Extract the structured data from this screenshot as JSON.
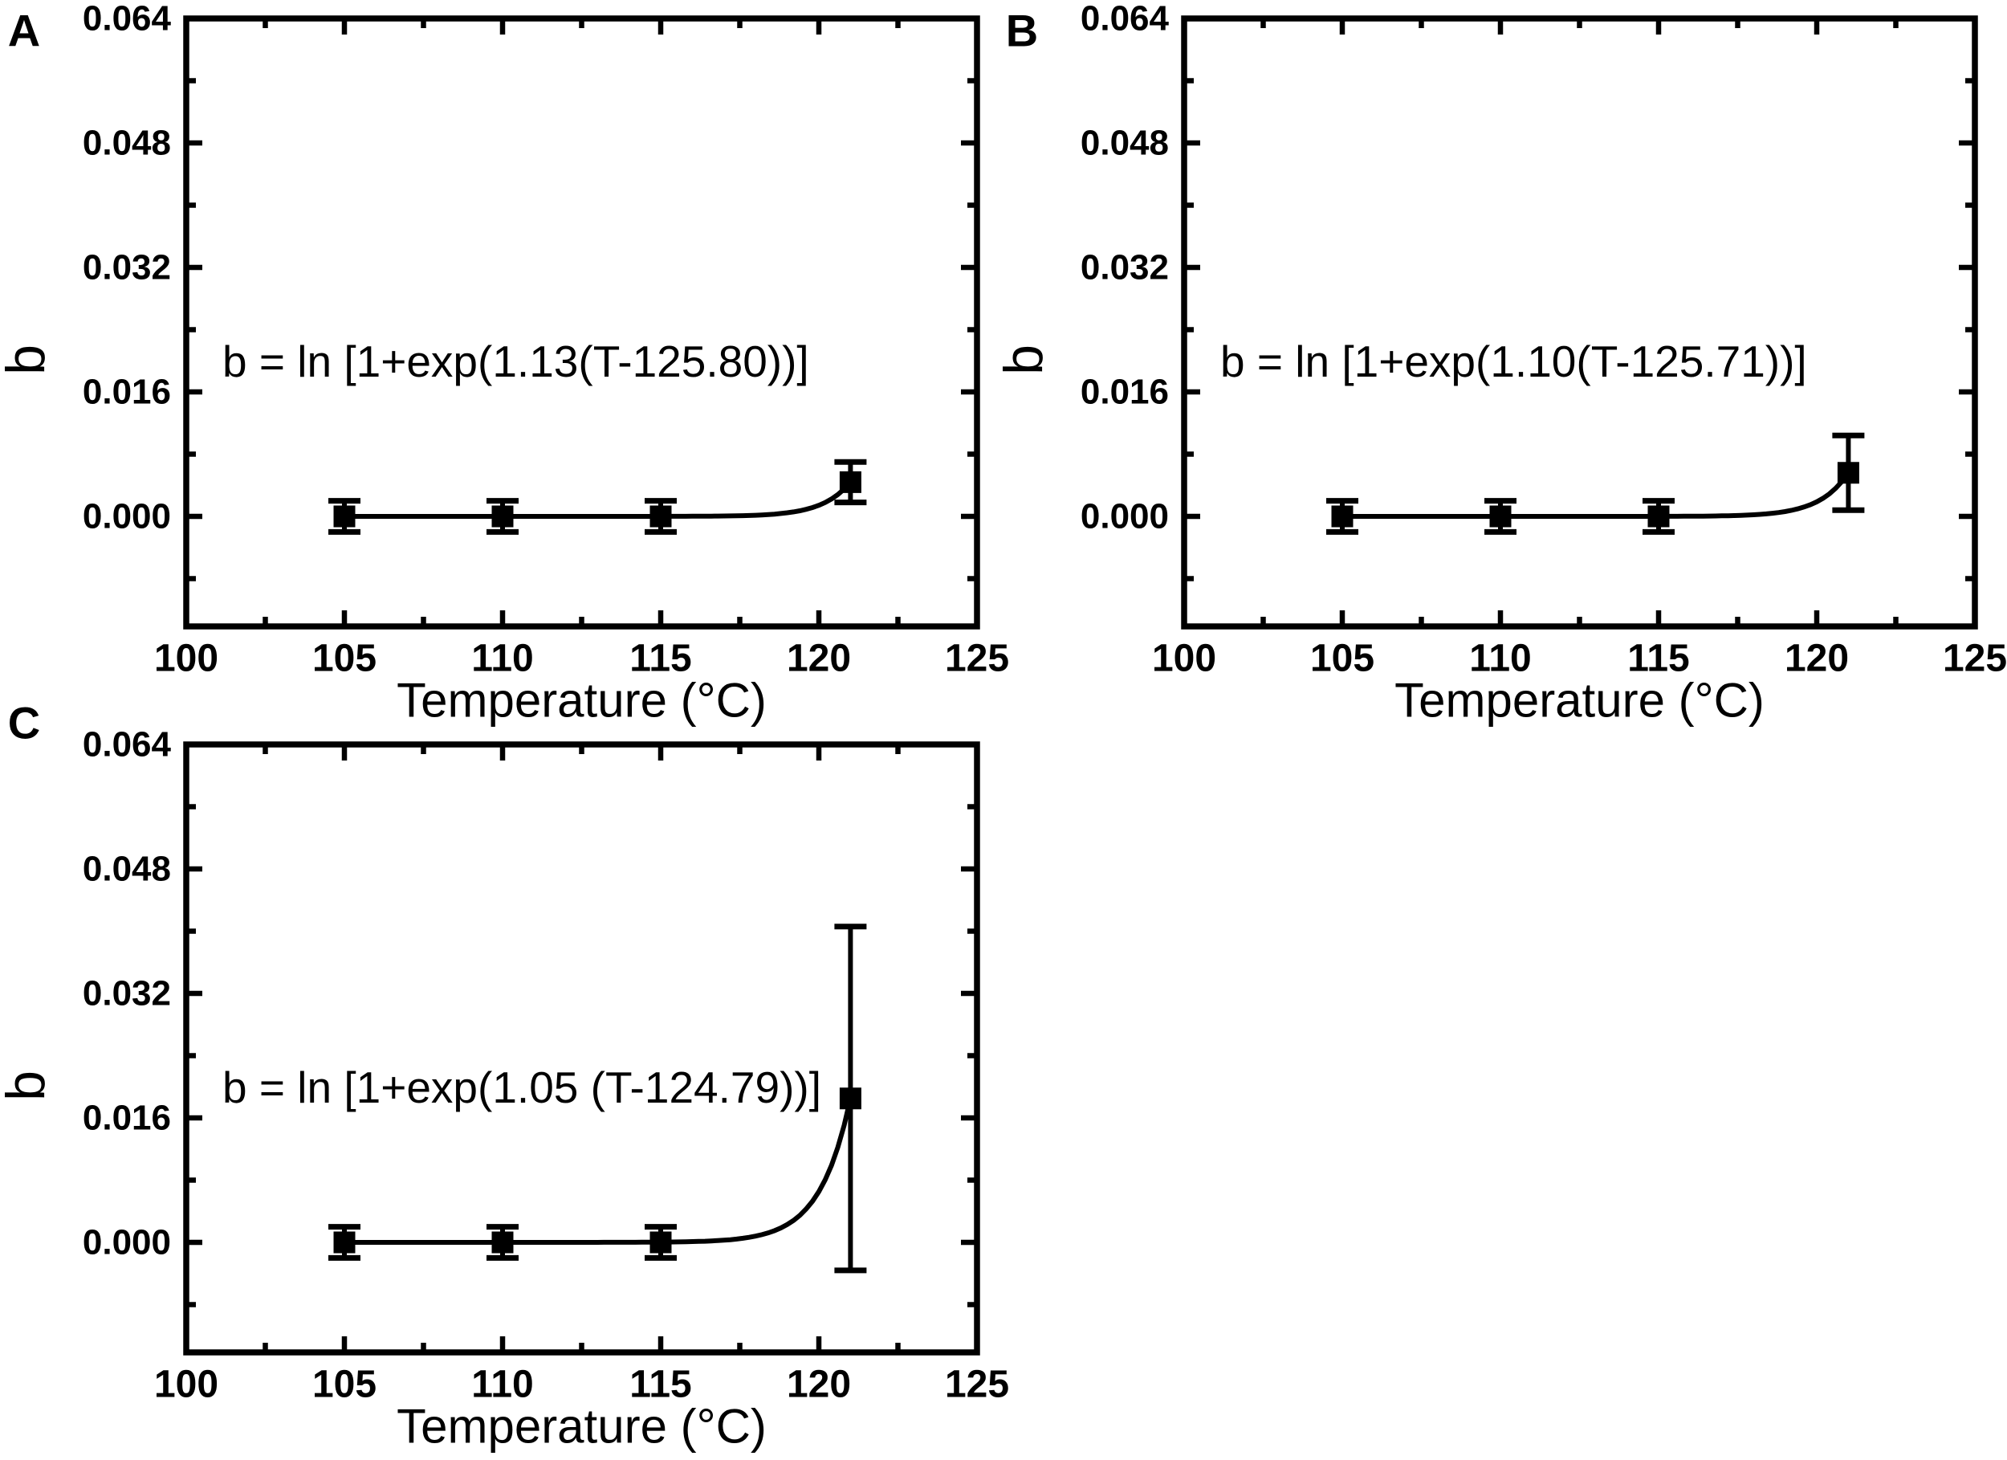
{
  "figure": {
    "background_color": "#ffffff",
    "ink_color": "#000000",
    "description_of_content": "Three panels (A, B, C) plotting parameter b versus Temperature (°C) with filled square data points, error bars, and a fitted curve b = ln[1+exp(k(T-T0))]"
  },
  "chart_data": [
    {
      "type": "scatter-line",
      "panel_label": "A",
      "annotation": "b = ln [1+exp(1.13(T-125.80))]",
      "xlabel": "Temperature (°C)",
      "ylabel": "b",
      "xlim": [
        100,
        125
      ],
      "ylim": [
        -0.014,
        0.064
      ],
      "x_major_ticks": [
        100,
        105,
        110,
        115,
        120,
        125
      ],
      "x_tick_labels": [
        "100",
        "105",
        "110",
        "115",
        "120",
        "125"
      ],
      "x_minor_ticks": [
        102.5,
        107.5,
        112.5,
        117.5,
        122.5
      ],
      "y_major_ticks": [
        0.0,
        0.016,
        0.032,
        0.048,
        0.064
      ],
      "y_tick_labels": [
        "0.000",
        "0.016",
        "0.032",
        "0.048",
        "0.064"
      ],
      "y_minor_ticks": [
        -0.008,
        0.008,
        0.024,
        0.04,
        0.056
      ],
      "grid": false,
      "legend": false,
      "series": [
        {
          "name": "data",
          "marker": "filled-square",
          "x": [
            105,
            110,
            115,
            121
          ],
          "y": [
            0.0,
            0.0,
            0.0,
            0.0044
          ],
          "y_err": [
            0.002,
            0.002,
            0.002,
            0.0026
          ]
        }
      ],
      "fit_curve": {
        "equation_form": "b = ln[1+exp(k(T-T0))]",
        "k": 1.13,
        "T0": 125.8,
        "T_range": [
          105,
          121
        ]
      }
    },
    {
      "type": "scatter-line",
      "panel_label": "B",
      "annotation": "b = ln [1+exp(1.10(T-125.71))]",
      "xlabel": "Temperature (°C)",
      "ylabel": "b",
      "xlim": [
        100,
        125
      ],
      "ylim": [
        -0.014,
        0.064
      ],
      "x_major_ticks": [
        100,
        105,
        110,
        115,
        120,
        125
      ],
      "x_tick_labels": [
        "100",
        "105",
        "110",
        "115",
        "120",
        "125"
      ],
      "x_minor_ticks": [
        102.5,
        107.5,
        112.5,
        117.5,
        122.5
      ],
      "y_major_ticks": [
        0.0,
        0.016,
        0.032,
        0.048,
        0.064
      ],
      "y_tick_labels": [
        "0.000",
        "0.016",
        "0.032",
        "0.048",
        "0.064"
      ],
      "y_minor_ticks": [
        -0.008,
        0.008,
        0.024,
        0.04,
        0.056
      ],
      "grid": false,
      "legend": false,
      "series": [
        {
          "name": "data",
          "marker": "filled-square",
          "x": [
            105,
            110,
            115,
            121
          ],
          "y": [
            0.0,
            0.0,
            0.0,
            0.0056
          ],
          "y_err": [
            0.002,
            0.002,
            0.002,
            0.0048
          ]
        }
      ],
      "fit_curve": {
        "equation_form": "b = ln[1+exp(k(T-T0))]",
        "k": 1.1,
        "T0": 125.71,
        "T_range": [
          105,
          121
        ]
      }
    },
    {
      "type": "scatter-line",
      "panel_label": "C",
      "annotation": "b = ln [1+exp(1.05 (T-124.79))]",
      "xlabel": "Temperature (°C)",
      "ylabel": "b",
      "xlim": [
        100,
        125
      ],
      "ylim": [
        -0.014,
        0.064
      ],
      "x_major_ticks": [
        100,
        105,
        110,
        115,
        120,
        125
      ],
      "x_tick_labels": [
        "100",
        "105",
        "110",
        "115",
        "120",
        "125"
      ],
      "x_minor_ticks": [
        102.5,
        107.5,
        112.5,
        117.5,
        122.5
      ],
      "y_major_ticks": [
        0.0,
        0.016,
        0.032,
        0.048,
        0.064
      ],
      "y_tick_labels": [
        "0.000",
        "0.016",
        "0.032",
        "0.048",
        "0.064"
      ],
      "y_minor_ticks": [
        -0.008,
        0.008,
        0.024,
        0.04,
        0.056
      ],
      "grid": false,
      "legend": false,
      "series": [
        {
          "name": "data",
          "marker": "filled-square",
          "x": [
            105,
            110,
            115,
            121
          ],
          "y": [
            0.0,
            0.0,
            0.0,
            0.0185
          ],
          "y_err": [
            0.002,
            0.002,
            0.002,
            0.0221
          ]
        }
      ],
      "fit_curve": {
        "equation_form": "b = ln[1+exp(k(T-T0))]",
        "k": 1.05,
        "T0": 124.79,
        "T_range": [
          105,
          121
        ]
      }
    }
  ]
}
